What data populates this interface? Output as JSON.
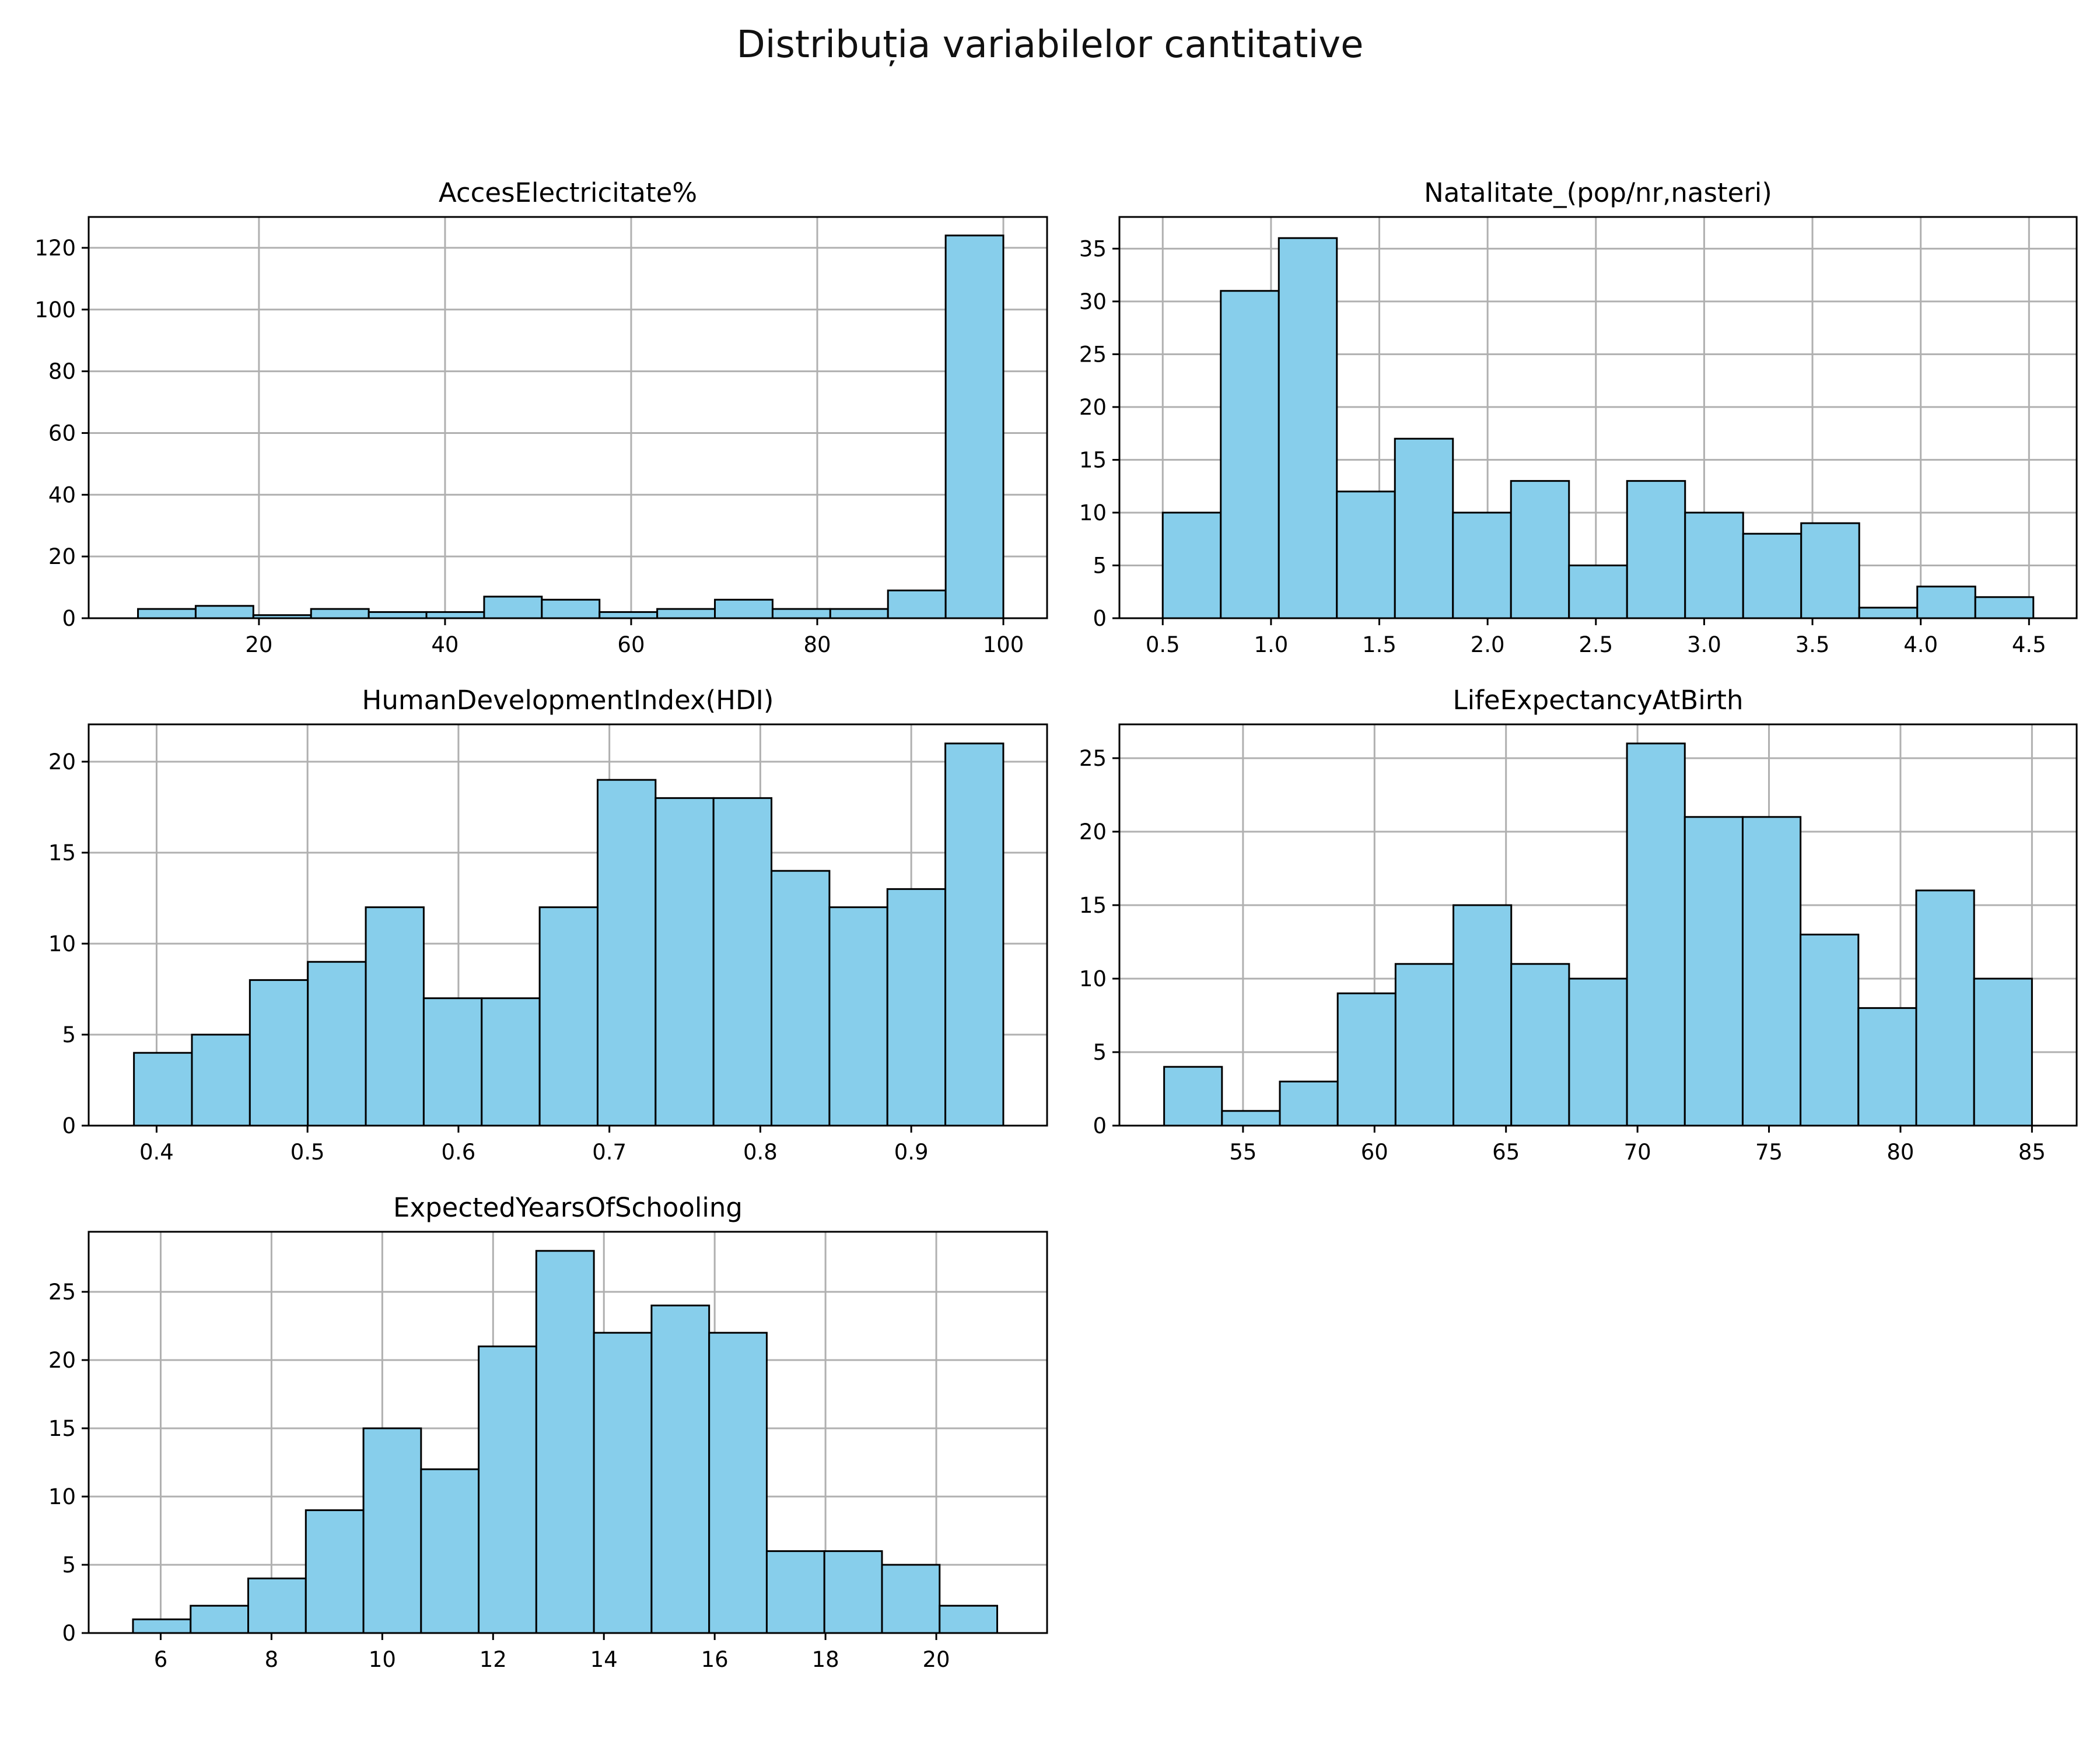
{
  "figure": {
    "title": "Distribuția variabilelor cantitative"
  },
  "style": {
    "bar_fill": "#87ceeb",
    "bar_edge": "#000000",
    "grid_color": "#b0b0b0"
  },
  "chart_data": [
    {
      "type": "bar",
      "title": "AccesElectricitate%",
      "xlabel": "",
      "ylabel": "",
      "grid": true,
      "xlim": [
        1.7,
        104.7
      ],
      "ylim": [
        0,
        130
      ],
      "xticks": [
        20,
        40,
        60,
        80,
        100
      ],
      "yticks": [
        0,
        20,
        40,
        60,
        80,
        100,
        120
      ],
      "bin_edges": [
        7.0,
        13.2,
        19.4,
        25.6,
        31.8,
        38.0,
        44.2,
        50.4,
        56.6,
        62.8,
        69.0,
        75.2,
        81.4,
        87.6,
        93.8,
        100.0
      ],
      "values": [
        3,
        4,
        1,
        3,
        2,
        2,
        7,
        6,
        2,
        3,
        6,
        3,
        3,
        9,
        124
      ]
    },
    {
      "type": "bar",
      "title": "Natalitate_(pop/nr,nasteri)",
      "xlabel": "",
      "ylabel": "",
      "grid": true,
      "xlim": [
        0.3,
        4.72
      ],
      "ylim": [
        0,
        38
      ],
      "xticks": [
        0.5,
        1.0,
        1.5,
        2.0,
        2.5,
        3.0,
        3.5,
        4.0,
        4.5
      ],
      "ytick_labels": [
        "0",
        "5",
        "10",
        "15",
        "20",
        "25",
        "30",
        "35"
      ],
      "xtick_labels": [
        "0.5",
        "1.0",
        "1.5",
        "2.0",
        "2.5",
        "3.0",
        "3.5",
        "4.0",
        "4.5"
      ],
      "yticks": [
        0,
        5,
        10,
        15,
        20,
        25,
        30,
        35
      ],
      "bin_edges": [
        0.5,
        0.768,
        1.036,
        1.304,
        1.572,
        1.84,
        2.108,
        2.376,
        2.644,
        2.912,
        3.18,
        3.448,
        3.716,
        3.984,
        4.252,
        4.52
      ],
      "values": [
        10,
        31,
        36,
        12,
        17,
        10,
        13,
        5,
        13,
        10,
        8,
        9,
        1,
        3,
        2
      ]
    },
    {
      "type": "bar",
      "title": "HumanDevelopmentIndex(HDI)",
      "xlabel": "",
      "ylabel": "",
      "grid": true,
      "xlim": [
        0.355,
        0.99
      ],
      "ylim": [
        0,
        22.05
      ],
      "xticks": [
        0.4,
        0.5,
        0.6,
        0.7,
        0.8,
        0.9
      ],
      "xtick_labels": [
        "0.4",
        "0.5",
        "0.6",
        "0.7",
        "0.8",
        "0.9"
      ],
      "yticks": [
        0,
        5,
        10,
        15,
        20
      ],
      "bin_edges": [
        0.385,
        0.4234,
        0.4618,
        0.5002,
        0.5386,
        0.577,
        0.6154,
        0.6538,
        0.6922,
        0.7306,
        0.769,
        0.8074,
        0.8458,
        0.8842,
        0.9226,
        0.961
      ],
      "values": [
        4,
        5,
        8,
        9,
        12,
        7,
        7,
        12,
        19,
        18,
        18,
        14,
        12,
        13,
        21
      ]
    },
    {
      "type": "bar",
      "title": "LifeExpectancyAtBirth",
      "xlabel": "",
      "ylabel": "",
      "grid": true,
      "xlim": [
        50.3,
        86.7
      ],
      "ylim": [
        0,
        27.3
      ],
      "xticks": [
        55,
        60,
        65,
        70,
        75,
        80,
        85
      ],
      "yticks": [
        0,
        5,
        10,
        15,
        20,
        25
      ],
      "bin_edges": [
        52.0,
        54.2,
        56.4,
        58.6,
        60.8,
        63.0,
        65.2,
        67.4,
        69.6,
        71.8,
        74.0,
        76.2,
        78.4,
        80.6,
        82.8,
        85.0
      ],
      "values": [
        4,
        1,
        3,
        9,
        11,
        15,
        11,
        10,
        26,
        21,
        21,
        13,
        8,
        16,
        10
      ]
    },
    {
      "type": "bar",
      "title": "ExpectedYearsOfSchooling",
      "xlabel": "",
      "ylabel": "",
      "grid": true,
      "xlim": [
        4.7,
        22.0
      ],
      "ylim": [
        0,
        29.4
      ],
      "xticks": [
        6,
        8,
        10,
        12,
        14,
        16,
        18,
        20
      ],
      "yticks": [
        0,
        5,
        10,
        15,
        20,
        25
      ],
      "bin_edges": [
        5.5,
        6.54,
        7.58,
        8.62,
        9.66,
        10.7,
        11.74,
        12.78,
        13.82,
        14.86,
        15.9,
        16.94,
        17.98,
        19.02,
        20.06,
        21.1
      ],
      "values": [
        1,
        2,
        4,
        9,
        15,
        12,
        21,
        28,
        22,
        24,
        22,
        6,
        6,
        5,
        2
      ]
    }
  ]
}
